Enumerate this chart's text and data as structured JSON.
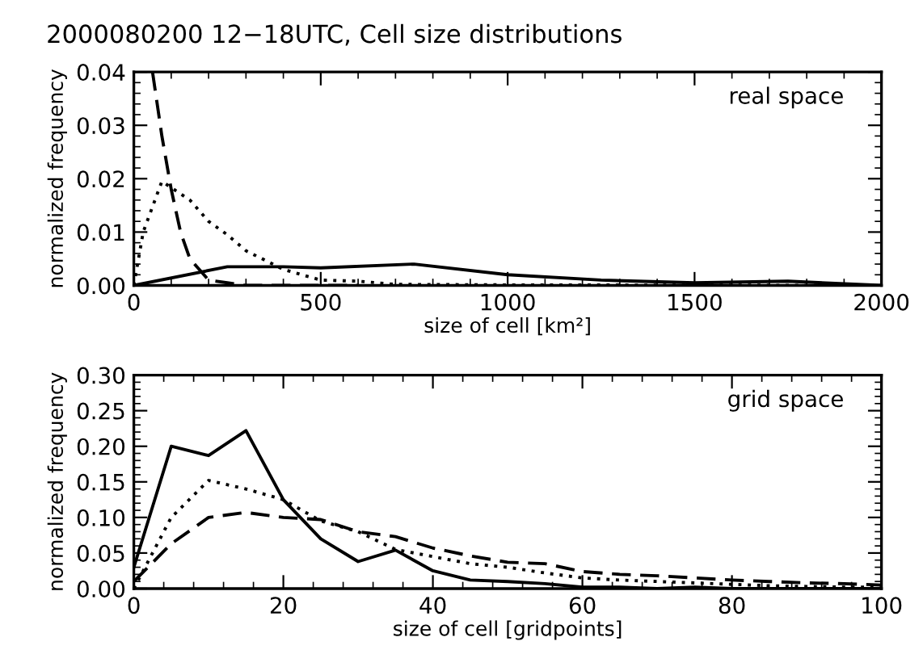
{
  "chart_data": [
    {
      "type": "line",
      "title": "2000080200 12−18UTC, Cell size distributions",
      "xlabel": "size of cell [km²]",
      "ylabel": "normalized frequency",
      "annotations": [
        "real space"
      ],
      "xlim": [
        0,
        2000
      ],
      "ylim": [
        0,
        0.04
      ],
      "xticks": [
        0,
        500,
        1000,
        1500,
        2000
      ],
      "yticks": [
        {
          "value": 0,
          "label": "0.00"
        },
        {
          "value": 0.01,
          "label": "0.01"
        },
        {
          "value": 0.02,
          "label": "0.02"
        },
        {
          "value": 0.03,
          "label": "0.03"
        },
        {
          "value": 0.04,
          "label": "0.04"
        }
      ],
      "grid": false,
      "legend": false,
      "series": [
        {
          "color": "#000000",
          "line_style": "solid",
          "x": [
            0,
            250,
            400,
            500,
            750,
            1000,
            1250,
            1500,
            1750,
            2000
          ],
          "values": [
            0,
            0.0035,
            0.0035,
            0.0033,
            0.004,
            0.002,
            0.001,
            0.0005,
            0.0008,
            0
          ]
        },
        {
          "color": "#000000",
          "line_style": "dotted",
          "x": [
            0,
            25,
            75,
            150,
            200,
            250,
            300,
            400,
            500,
            600,
            700,
            1000,
            2000
          ],
          "values": [
            0,
            0.01,
            0.0195,
            0.016,
            0.012,
            0.0095,
            0.0065,
            0.003,
            0.001,
            0.0008,
            0.0002,
            0.0001,
            0
          ]
        },
        {
          "color": "#000000",
          "line_style": "dashed",
          "x": [
            50,
            75,
            100,
            125,
            150,
            200,
            250,
            300,
            600
          ],
          "values": [
            0.04,
            0.028,
            0.018,
            0.01,
            0.005,
            0.001,
            0.0005,
            0,
            0
          ]
        }
      ]
    },
    {
      "type": "line",
      "xlabel": "size of cell [gridpoints]",
      "ylabel": "normalized frequency",
      "annotations": [
        "grid space"
      ],
      "xlim": [
        0,
        100
      ],
      "ylim": [
        0,
        0.3
      ],
      "xticks": [
        0,
        20,
        40,
        60,
        80,
        100
      ],
      "yticks": [
        {
          "value": 0,
          "label": "0.00"
        },
        {
          "value": 0.05,
          "label": "0.05"
        },
        {
          "value": 0.1,
          "label": "0.10"
        },
        {
          "value": 0.15,
          "label": "0.15"
        },
        {
          "value": 0.2,
          "label": "0.20"
        },
        {
          "value": 0.25,
          "label": "0.25"
        },
        {
          "value": 0.3,
          "label": "0.30"
        }
      ],
      "grid": false,
      "legend": false,
      "series": [
        {
          "color": "#000000",
          "line_style": "solid",
          "x": [
            0,
            5,
            10,
            15,
            20,
            25,
            30,
            35,
            40,
            45,
            50,
            55,
            60,
            65,
            70,
            75,
            80,
            85,
            90,
            95,
            100
          ],
          "values": [
            0.03,
            0.2,
            0.187,
            0.222,
            0.125,
            0.07,
            0.038,
            0.054,
            0.025,
            0.012,
            0.01,
            0.007,
            0.002,
            0.002,
            0,
            0.002,
            0,
            0,
            0,
            0,
            0
          ]
        },
        {
          "color": "#000000",
          "line_style": "dotted",
          "x": [
            0,
            5,
            10,
            15,
            20,
            25,
            30,
            35,
            40,
            45,
            50,
            55,
            60,
            65,
            70,
            75,
            80,
            85,
            90,
            95,
            100
          ],
          "values": [
            0,
            0.1,
            0.152,
            0.14,
            0.125,
            0.095,
            0.08,
            0.055,
            0.045,
            0.035,
            0.03,
            0.022,
            0.015,
            0.012,
            0.01,
            0.008,
            0.006,
            0.004,
            0.003,
            0.002,
            0.002
          ]
        },
        {
          "color": "#000000",
          "line_style": "dashed",
          "x": [
            0,
            5,
            10,
            15,
            20,
            25,
            30,
            35,
            40,
            45,
            50,
            55,
            60,
            65,
            70,
            75,
            80,
            85,
            90,
            95,
            100
          ],
          "values": [
            0.01,
            0.063,
            0.1,
            0.107,
            0.1,
            0.097,
            0.08,
            0.073,
            0.057,
            0.046,
            0.037,
            0.035,
            0.024,
            0.02,
            0.018,
            0.015,
            0.012,
            0.01,
            0.008,
            0.007,
            0.005
          ]
        }
      ]
    }
  ]
}
